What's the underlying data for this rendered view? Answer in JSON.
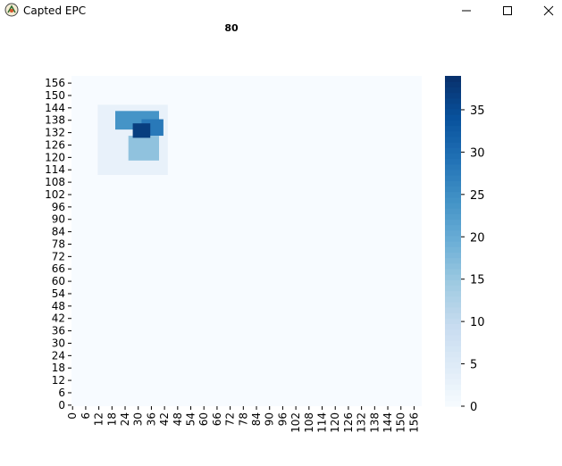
{
  "window": {
    "title": "Capted EPC",
    "minimize_icon": "minimize-icon",
    "maximize_icon": "maximize-icon",
    "close_icon": "close-icon"
  },
  "chart_data": {
    "type": "heatmap",
    "title": "80",
    "xlabel": "",
    "ylabel": "",
    "x_ticks": [
      "0",
      "6",
      "12",
      "18",
      "24",
      "30",
      "36",
      "42",
      "48",
      "54",
      "60",
      "66",
      "72",
      "78",
      "84",
      "90",
      "96",
      "102",
      "108",
      "114",
      "120",
      "126",
      "132",
      "138",
      "144",
      "150",
      "156"
    ],
    "y_ticks": [
      "0",
      "6",
      "12",
      "18",
      "24",
      "30",
      "36",
      "42",
      "48",
      "54",
      "60",
      "66",
      "72",
      "78",
      "84",
      "90",
      "96",
      "102",
      "108",
      "114",
      "120",
      "126",
      "132",
      "138",
      "144",
      "150",
      "156"
    ],
    "grid_size": 160,
    "colorbar": {
      "min": 0,
      "max": 39,
      "ticks": [
        0,
        5,
        10,
        15,
        20,
        25,
        30,
        35
      ],
      "colormap": "Blues"
    },
    "background_value": 0,
    "regions": [
      {
        "note": "faint halo",
        "x": [
          12,
          44
        ],
        "y": [
          112,
          146
        ],
        "value": 3
      },
      {
        "note": "upper wedge",
        "x": [
          20,
          40
        ],
        "y": [
          134,
          143
        ],
        "value": 24
      },
      {
        "note": "right lobe",
        "x": [
          32,
          42
        ],
        "y": [
          131,
          139
        ],
        "value": 28
      },
      {
        "note": "lower lobe",
        "x": [
          26,
          40
        ],
        "y": [
          119,
          131
        ],
        "value": 16
      },
      {
        "note": "dark core",
        "x": [
          28,
          36
        ],
        "y": [
          130,
          137
        ],
        "value": 37
      }
    ]
  }
}
